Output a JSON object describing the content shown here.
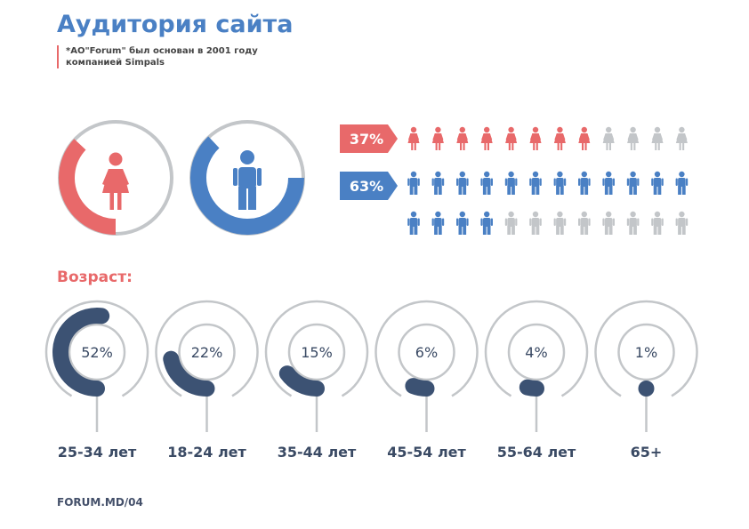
{
  "header": {
    "title": "Аудитория сайта",
    "subtitle_line1": "*АО\"Forum\" был основан в 2001 году",
    "subtitle_line2": "компанией Simpals"
  },
  "footer": {
    "source": "FORUM.MD/04"
  },
  "colors": {
    "female": "#e8696a",
    "male": "#4a80c4",
    "gray": "#c3c6c9",
    "age_fill": "#3c5273",
    "title": "#4a80c4"
  },
  "icons": {
    "female": "woman-icon",
    "male": "man-icon"
  },
  "chart_data": [
    {
      "type": "pie",
      "title": "",
      "categories": [
        "Женщины",
        "Мужчины"
      ],
      "values": [
        37,
        63
      ],
      "unit": "%",
      "pictograph": {
        "female_filled": 8,
        "female_total": 12,
        "male_filled": 16,
        "male_total": 24
      }
    },
    {
      "type": "pie",
      "title": "Возраст:",
      "categories": [
        "25-34 лет",
        "18-24 лет",
        "35-44 лет",
        "45-54 лет",
        "55-64 лет",
        "65+"
      ],
      "values": [
        52,
        22,
        15,
        6,
        4,
        1
      ],
      "labels": [
        "52%",
        "22%",
        "15%",
        "6%",
        "4%",
        "1%"
      ]
    }
  ],
  "gender": {
    "female_label": "37%",
    "male_label": "63%"
  }
}
